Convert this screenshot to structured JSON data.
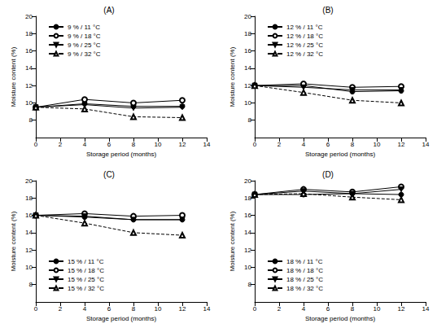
{
  "chart_data": [
    {
      "type": "line",
      "title": "(A)",
      "x_label": "Storage period (months)",
      "y_label": "Moisture content (%)",
      "x": [
        0,
        4,
        8,
        12
      ],
      "xlim": [
        0,
        14
      ],
      "xticks": [
        0,
        2,
        4,
        6,
        8,
        10,
        12,
        14
      ],
      "ylim": [
        6,
        20
      ],
      "yticks": [
        8,
        10,
        12,
        14,
        16,
        18,
        20
      ],
      "grid": false,
      "legend": "upper left",
      "series": [
        {
          "name": "9 % / 11 °C",
          "color": "#000000",
          "marker": "circle",
          "line_style": "solid",
          "values": [
            9.5,
            9.9,
            9.6,
            9.6
          ]
        },
        {
          "name": "9 % / 18 °C",
          "color": "#000000",
          "marker": "open_circle",
          "line_style": "solid",
          "values": [
            9.5,
            10.4,
            10.0,
            10.3
          ]
        },
        {
          "name": "9 % / 25 °C",
          "color": "#000000",
          "marker": "triangle_down",
          "line_style": "solid",
          "values": [
            9.5,
            9.8,
            9.4,
            9.5
          ]
        },
        {
          "name": "9 % / 32 °C",
          "color": "#000000",
          "marker": "open_triangle",
          "line_style": "dashed",
          "values": [
            9.5,
            9.3,
            8.4,
            8.3
          ]
        }
      ]
    },
    {
      "type": "line",
      "title": "(B)",
      "x_label": "Storage period (months)",
      "y_label": "Moisture content (%)",
      "x": [
        0,
        4,
        8,
        12
      ],
      "xlim": [
        0,
        14
      ],
      "xticks": [
        0,
        2,
        4,
        6,
        8,
        10,
        12,
        14
      ],
      "ylim": [
        6,
        20
      ],
      "yticks": [
        8,
        10,
        12,
        14,
        16,
        18,
        20
      ],
      "grid": false,
      "legend": "upper left",
      "series": [
        {
          "name": "12 % / 11 °C",
          "color": "#000000",
          "marker": "circle",
          "line_style": "solid",
          "values": [
            12.0,
            12.0,
            11.3,
            11.4
          ]
        },
        {
          "name": "12 % / 18 °C",
          "color": "#000000",
          "marker": "open_circle",
          "line_style": "solid",
          "values": [
            12.0,
            12.2,
            11.8,
            11.9
          ]
        },
        {
          "name": "12 % / 25 °C",
          "color": "#000000",
          "marker": "triangle_down",
          "line_style": "solid",
          "values": [
            12.0,
            11.8,
            11.5,
            11.5
          ]
        },
        {
          "name": "12 % / 32 °C",
          "color": "#000000",
          "marker": "open_triangle",
          "line_style": "dashed",
          "values": [
            12.0,
            11.2,
            10.3,
            10.0
          ]
        }
      ]
    },
    {
      "type": "line",
      "title": "(C)",
      "x_label": "Storage period (months)",
      "y_label": "Moisture content (%)",
      "x": [
        0,
        4,
        8,
        12
      ],
      "xlim": [
        0,
        14
      ],
      "xticks": [
        0,
        2,
        4,
        6,
        8,
        10,
        12,
        14
      ],
      "ylim": [
        6,
        20
      ],
      "yticks": [
        8,
        10,
        12,
        14,
        16,
        18,
        20
      ],
      "grid": false,
      "legend": "lower left",
      "series": [
        {
          "name": "15 % / 11 °C",
          "color": "#000000",
          "marker": "circle",
          "line_style": "solid",
          "values": [
            16.0,
            15.8,
            15.5,
            15.5
          ]
        },
        {
          "name": "15 % / 18 °C",
          "color": "#000000",
          "marker": "open_circle",
          "line_style": "solid",
          "values": [
            16.0,
            16.2,
            15.9,
            16.0
          ]
        },
        {
          "name": "15 % / 25 °C",
          "color": "#000000",
          "marker": "triangle_down",
          "line_style": "solid",
          "values": [
            16.0,
            15.9,
            15.5,
            15.5
          ]
        },
        {
          "name": "15 % / 32 °C",
          "color": "#000000",
          "marker": "open_triangle",
          "line_style": "dashed",
          "values": [
            16.0,
            15.1,
            14.0,
            13.7
          ]
        }
      ]
    },
    {
      "type": "line",
      "title": "(D)",
      "x_label": "Storage period (months)",
      "y_label": "Moisture content (%)",
      "x": [
        0,
        4,
        8,
        12
      ],
      "xlim": [
        0,
        14
      ],
      "xticks": [
        0,
        2,
        4,
        6,
        8,
        10,
        12,
        14
      ],
      "ylim": [
        6,
        20
      ],
      "yticks": [
        8,
        10,
        12,
        14,
        16,
        18,
        20
      ],
      "grid": false,
      "legend": "lower left",
      "series": [
        {
          "name": "18 % / 11 °C",
          "color": "#000000",
          "marker": "circle",
          "line_style": "solid",
          "values": [
            18.4,
            18.4,
            18.5,
            18.4
          ]
        },
        {
          "name": "18 % / 18 °C",
          "color": "#000000",
          "marker": "open_circle",
          "line_style": "solid",
          "values": [
            18.4,
            19.0,
            18.7,
            19.3
          ]
        },
        {
          "name": "18 % / 25 °C",
          "color": "#000000",
          "marker": "triangle_down",
          "line_style": "solid",
          "values": [
            18.4,
            18.8,
            18.5,
            19.0
          ]
        },
        {
          "name": "18 % / 32 °C",
          "color": "#000000",
          "marker": "open_triangle",
          "line_style": "dashed",
          "values": [
            18.4,
            18.5,
            18.1,
            17.8
          ]
        }
      ]
    }
  ]
}
